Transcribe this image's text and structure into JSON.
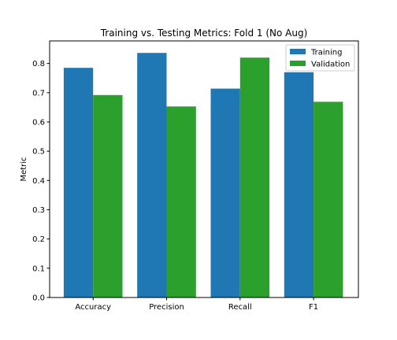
{
  "chart_data": {
    "type": "bar",
    "title": "Training vs. Testing Metrics: Fold 1 (No Aug)",
    "xlabel": "",
    "ylabel": "Metric",
    "categories": [
      "Accuracy",
      "Precision",
      "Recall",
      "F1"
    ],
    "series": [
      {
        "name": "Training",
        "color": "#1f77b4",
        "values": [
          0.785,
          0.836,
          0.714,
          0.77
        ]
      },
      {
        "name": "Validation",
        "color": "#2ca02c",
        "values": [
          0.692,
          0.653,
          0.82,
          0.669
        ]
      }
    ],
    "ylim": [
      0,
      0.877
    ],
    "yticks": [
      0.0,
      0.1,
      0.2,
      0.3,
      0.4,
      0.5,
      0.6,
      0.7,
      0.8
    ],
    "ytick_labels": [
      "0.0",
      "0.1",
      "0.2",
      "0.3",
      "0.4",
      "0.5",
      "0.6",
      "0.7",
      "0.8"
    ],
    "legend_position": "top-right",
    "grid": false
  }
}
